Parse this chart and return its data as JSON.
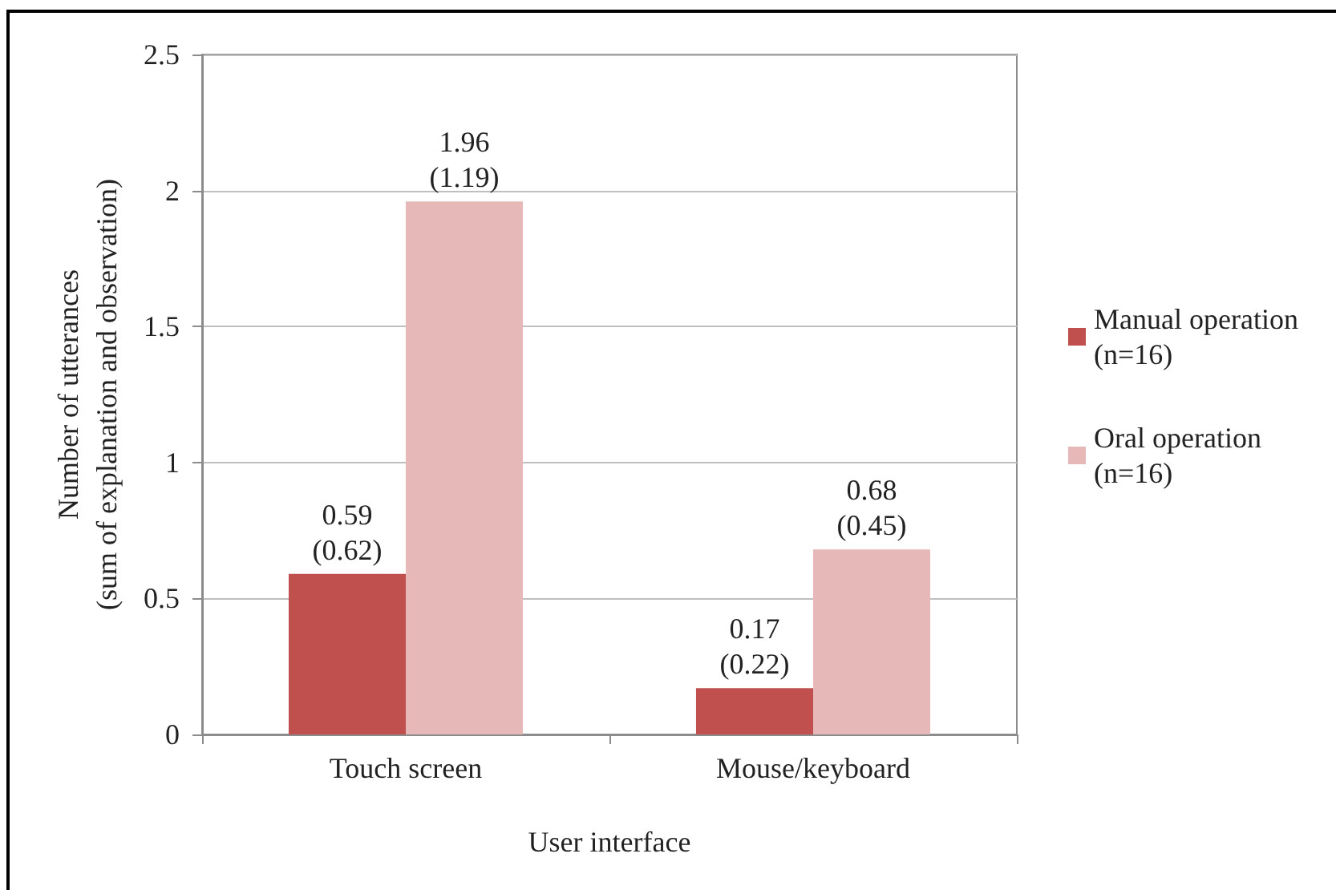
{
  "chart_data": {
    "type": "bar",
    "xlabel": "User interface",
    "ylabel": "Number of utterances\n(sum of explanation and observation)",
    "categories": [
      "Touch screen",
      "Mouse/keyboard"
    ],
    "series": [
      {
        "name": "Manual operation\n(n=16)",
        "color": "#c0504d",
        "values": [
          0.59,
          0.17
        ],
        "value_labels": [
          "0.59\n(0.62)",
          "0.17\n(0.22)"
        ]
      },
      {
        "name": "Oral operation\n(n=16)",
        "color": "#e6b9b8",
        "values": [
          1.96,
          0.68
        ],
        "value_labels": [
          "1.96\n(1.19)",
          "0.68\n(0.45)"
        ]
      }
    ],
    "ylim": [
      0,
      2.5
    ],
    "yticks": [
      0,
      0.5,
      1,
      1.5,
      2,
      2.5
    ],
    "grid": "y",
    "legend": "right"
  }
}
